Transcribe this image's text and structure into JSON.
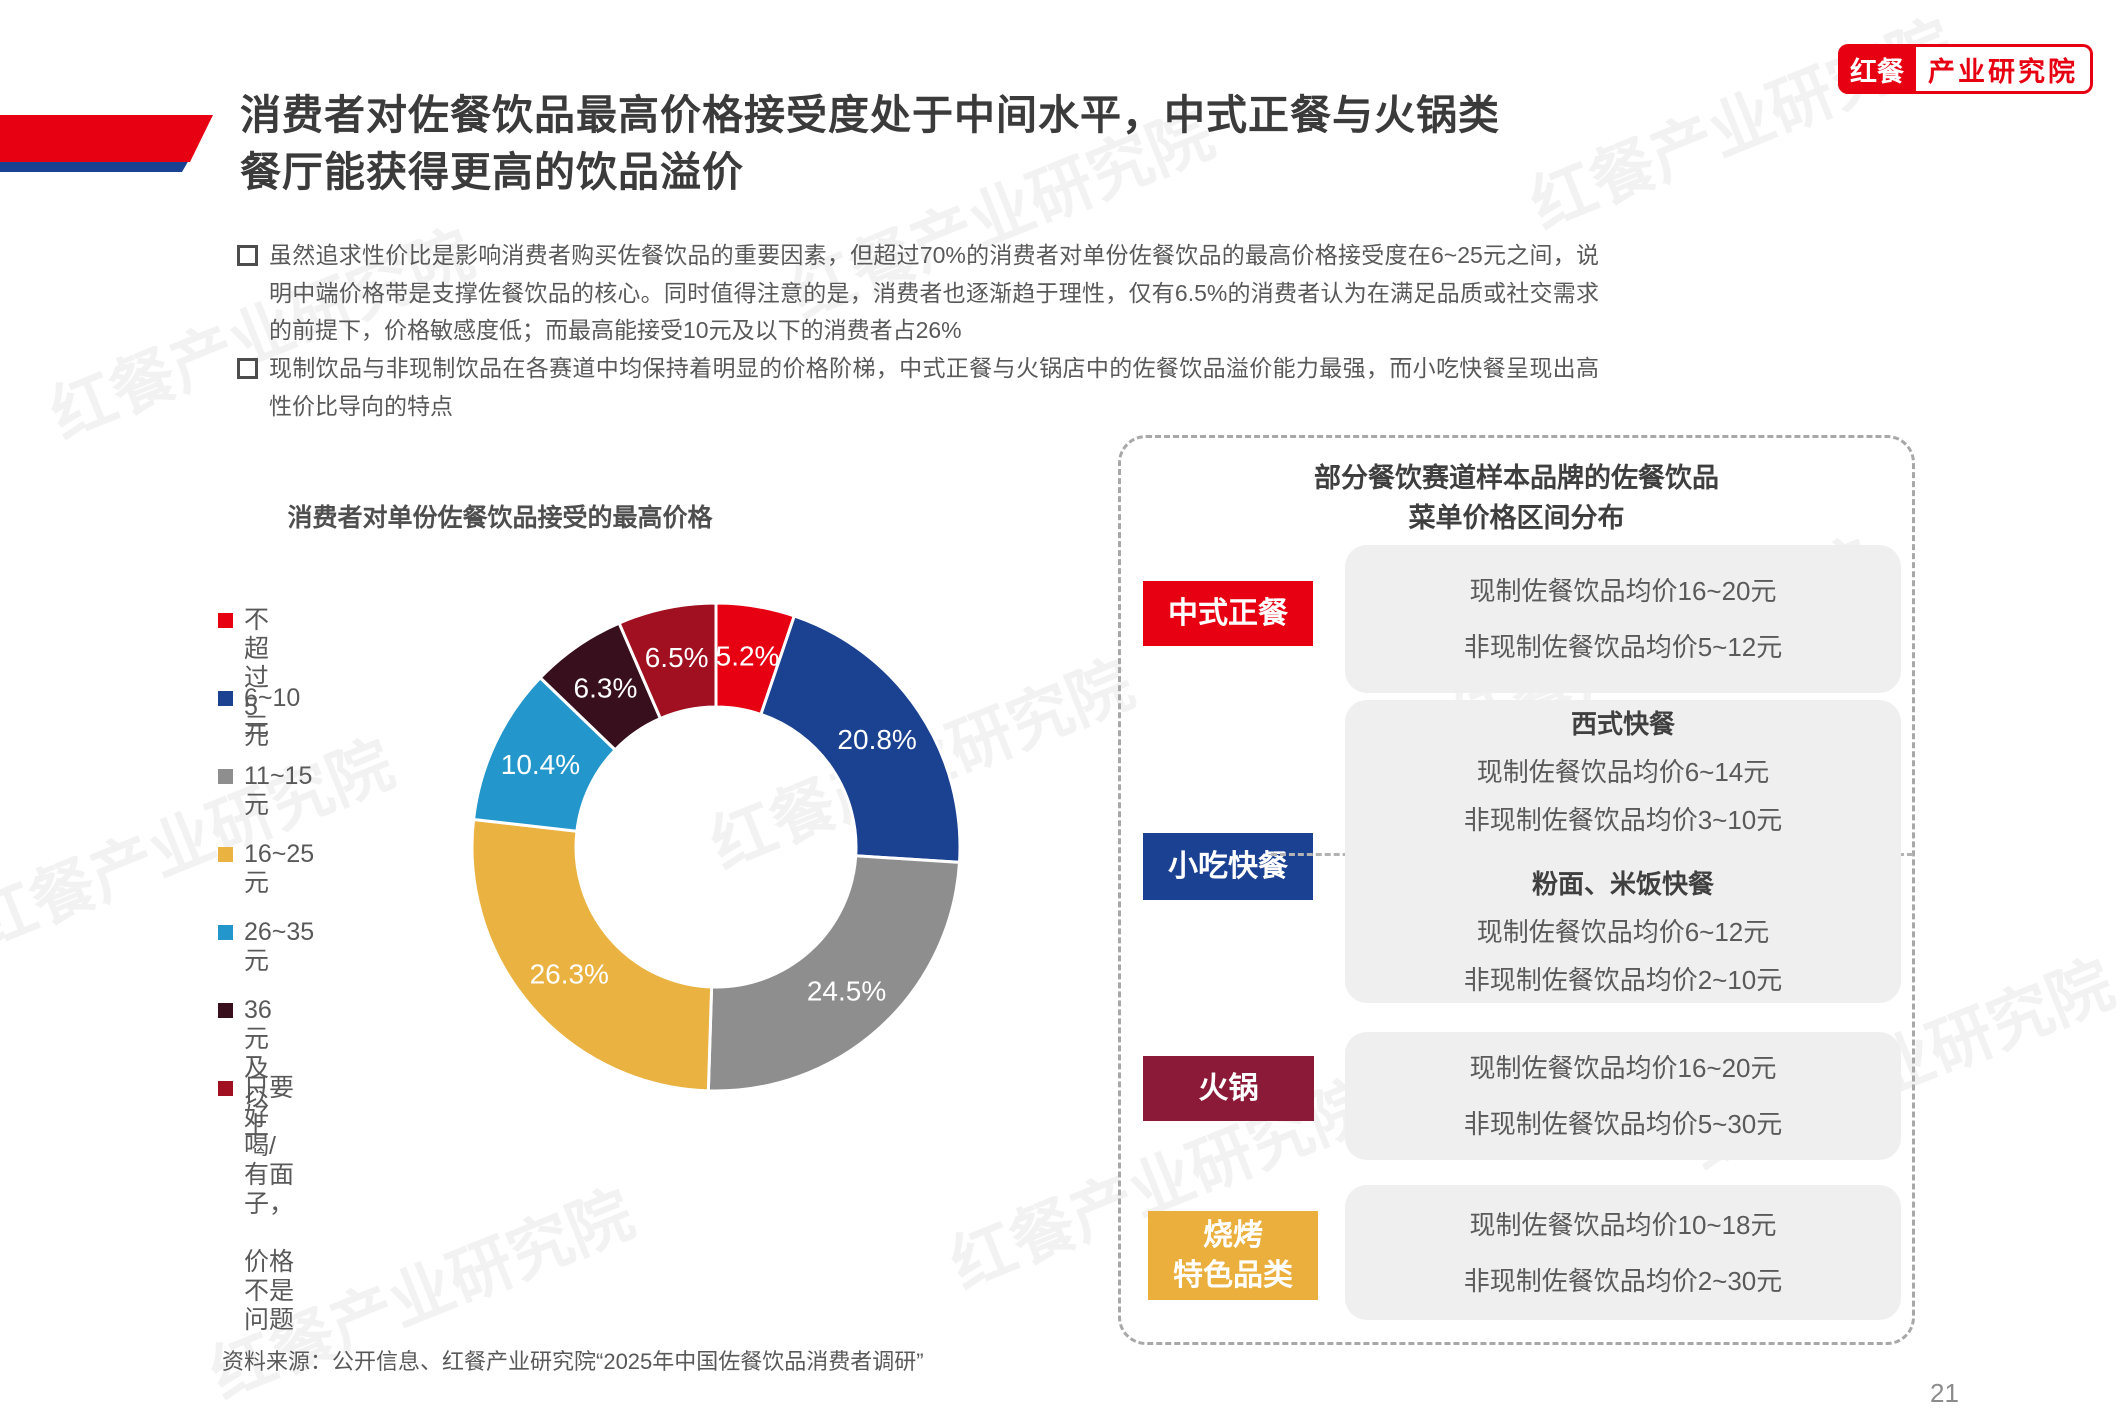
{
  "colors": {
    "brand_red": "#E60012",
    "brand_blue": "#1B4193",
    "wine": "#8A1A38",
    "gold": "#EAAF3C"
  },
  "logo": {
    "brand": "红餐",
    "suffix": "产业研究院"
  },
  "watermark": {
    "text": "红餐产业研究院"
  },
  "header": {
    "title_line1": "消费者对佐餐饮品最高价格接受度处于中间水平，中式正餐与火锅类",
    "title_line2": "餐厅能获得更高的饮品溢价"
  },
  "bullets": [
    "虽然追求性价比是影响消费者购买佐餐饮品的重要因素，但超过70%的消费者对单份佐餐饮品的最高价格接受度在6~25元之间，说明中端价格带是支撑佐餐饮品的核心。同时值得注意的是，消费者也逐渐趋于理性，仅有6.5%的消费者认为在满足品质或社交需求的前提下，价格敏感度低；而最高能接受10元及以下的消费者占26%",
    "现制饮品与非现制饮品在各赛道中均保持着明显的价格阶梯，中式正餐与火锅店中的佐餐饮品溢价能力最强，而小吃快餐呈现出高性价比导向的特点"
  ],
  "chart_data": {
    "type": "pie",
    "donut": true,
    "title": "消费者对单份佐餐饮品接受的最高价格",
    "categories": [
      "不超过5元",
      "6~10元",
      "11~15元",
      "16~25元",
      "26~35元",
      "36元及以上",
      "只要好喝/有面子，价格不是问题"
    ],
    "values": [
      5.2,
      20.8,
      24.5,
      26.3,
      10.4,
      6.3,
      6.5
    ],
    "labels": [
      "5.2%",
      "20.8%",
      "24.5%",
      "26.3%",
      "10.4%",
      "6.3%",
      "6.5%"
    ],
    "colors": [
      "#E60012",
      "#1A4291",
      "#8E8E8E",
      "#EAB240",
      "#2397CB",
      "#38101D",
      "#A01020"
    ],
    "start_angle_deg": 0,
    "direction": "clockwise",
    "legend_position": "left",
    "legend_lines": [
      [
        "不超过5元"
      ],
      [
        "6~10元"
      ],
      [
        "11~15元"
      ],
      [
        "16~25元"
      ],
      [
        "26~35元"
      ],
      [
        "36元及以上"
      ],
      [
        "只要好喝/有面子，",
        "价格不是问题"
      ]
    ]
  },
  "right_panel": {
    "title_line1": "部分餐饮赛道样本品牌的佐餐饮品",
    "title_line2": "菜单价格区间分布",
    "rows": [
      {
        "label": "中式正餐",
        "label_color": "#E60012",
        "lines": [
          "现制佐餐饮品均价16~20元",
          "非现制佐餐饮品均价5~12元"
        ]
      },
      {
        "label": "小吃快餐",
        "label_color": "#1B4193",
        "sections": [
          {
            "subtitle": "西式快餐",
            "lines": [
              "现制佐餐饮品均价6~14元",
              "非现制佐餐饮品均价3~10元"
            ]
          },
          {
            "subtitle": "粉面、米饭快餐",
            "lines": [
              "现制佐餐饮品均价6~12元",
              "非现制佐餐饮品均价2~10元"
            ]
          }
        ]
      },
      {
        "label": "火锅",
        "label_color": "#8A1A38",
        "lines": [
          "现制佐餐饮品均价16~20元",
          "非现制佐餐饮品均价5~30元"
        ]
      },
      {
        "label": "烧烤\n特色品类",
        "label_color": "#EAAF3C",
        "lines": [
          "现制佐餐饮品均价10~18元",
          "非现制佐餐饮品均价2~30元"
        ]
      }
    ]
  },
  "footer": {
    "source": "资料来源：公开信息、红餐产业研究院“2025年中国佐餐饮品消费者调研”",
    "page_number": "21"
  }
}
